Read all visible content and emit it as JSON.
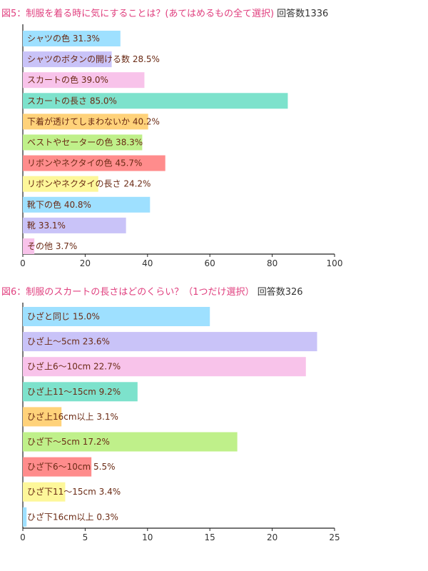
{
  "chart_data": [
    {
      "type": "bar",
      "orientation": "horizontal",
      "title": "図5：制服を着る時に気にすることは？(あてはめるもの全て選択)",
      "response_count": "回答数1336",
      "labels": [
        "シャツの色 31.3%",
        "シャツのボタンの開ける数 28.5%",
        "スカートの色 39.0%",
        "スカートの長さ 85.0%",
        "下着が透けてしまわないか 40.2%",
        "ベストやセーターの色 38.3%",
        "リボンやネクタイの色 45.7%",
        "リボンやネクタイの長さ 24.2%",
        "靴下の色 40.8%",
        "靴 33.1%",
        "その他 3.7%"
      ],
      "values": [
        31.3,
        28.5,
        39.0,
        85.0,
        40.2,
        38.3,
        45.7,
        24.2,
        40.8,
        33.1,
        3.7
      ],
      "colors": [
        "#9ee0ff",
        "#c9c3f8",
        "#f8c3ea",
        "#7de2cc",
        "#ffd27a",
        "#bff08a",
        "#ff8c8c",
        "#fdf79a",
        "#9ee0ff",
        "#c9c3f8",
        "#f8c3ea"
      ],
      "xlim": [
        0,
        100
      ],
      "ticks": [
        "0",
        "20",
        "40",
        "60",
        "80",
        "100"
      ],
      "tick_values": [
        0,
        20,
        40,
        60,
        80,
        100
      ]
    },
    {
      "type": "bar",
      "orientation": "horizontal",
      "title": "図6：制服のスカートの長さはどのくらい？（1つだけ選択）",
      "response_count": "回答数326",
      "labels": [
        "ひざと同じ 15.0%",
        "ひざ上～5cm 23.6%",
        "ひざ上6～10cm 22.7%",
        "ひざ上11～15cm 9.2%",
        "ひざ上16cm以上 3.1%",
        "ひざ下～5cm 17.2%",
        "ひざ下6～10cm 5.5%",
        "ひざ下11～15cm 3.4%",
        "ひざ下16cm以上 0.3%"
      ],
      "values": [
        15.0,
        23.6,
        22.7,
        9.2,
        3.1,
        17.2,
        5.5,
        3.4,
        0.3
      ],
      "colors": [
        "#9ee0ff",
        "#c9c3f8",
        "#f8c3ea",
        "#7de2cc",
        "#ffd27a",
        "#bff08a",
        "#ff8c8c",
        "#fdf79a",
        "#9ee0ff"
      ],
      "xlim": [
        0,
        25
      ],
      "ticks": [
        "0",
        "5",
        "10",
        "15",
        "20",
        "25"
      ],
      "tick_values": [
        0,
        5,
        10,
        15,
        20,
        25
      ]
    }
  ]
}
